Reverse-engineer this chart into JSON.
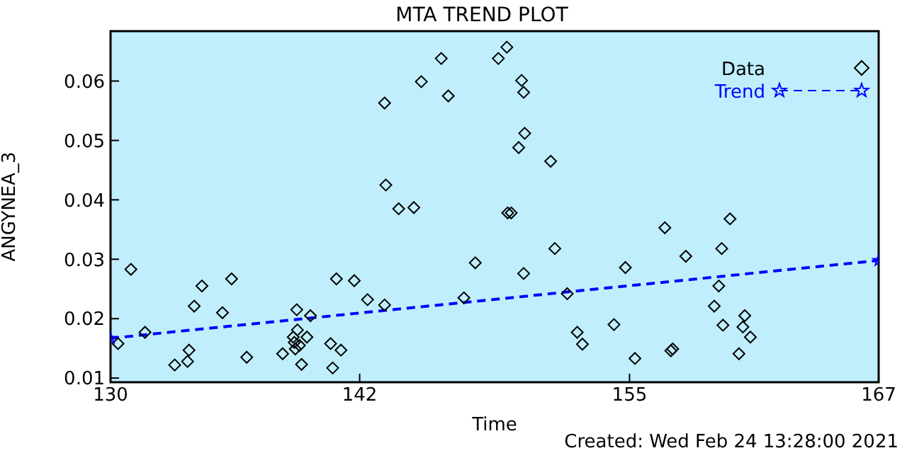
{
  "chart_data": {
    "type": "scatter",
    "title": "MTA TREND PLOT",
    "xlabel": "Time",
    "ylabel": "ANGYNEA_3",
    "annotations": [
      "Created: Wed Feb 24 13:28:00 2021"
    ],
    "xlim": [
      130,
      167
    ],
    "xticks": [
      130,
      142,
      155,
      167
    ],
    "ylim": [
      0.0093,
      0.0684
    ],
    "yticks": [
      0.01,
      0.02,
      0.03,
      0.04,
      0.05,
      0.06
    ],
    "legend": "top right",
    "series": [
      {
        "name": "Data",
        "color": "#000000",
        "marker": "diamond",
        "x": [
          130.36,
          130.98,
          131.66,
          133.09,
          133.71,
          133.78,
          134.03,
          134.4,
          135.39,
          135.83,
          136.56,
          138.29,
          138.8,
          138.9,
          138.97,
          139.0,
          139.1,
          139.2,
          138.85,
          139.46,
          139.63,
          140.6,
          140.7,
          140.88,
          141.1,
          141.74,
          142.38,
          143.2,
          143.2,
          143.26,
          143.88,
          144.61,
          144.97,
          145.93,
          146.27,
          147.02,
          147.57,
          148.68,
          149.09,
          149.13,
          149.3,
          149.66,
          149.8,
          149.9,
          149.9,
          149.95,
          151.2,
          151.4,
          152.0,
          152.48,
          152.73,
          154.25,
          154.8,
          155.26,
          156.7,
          156.99,
          157.08,
          157.71,
          159.08,
          159.3,
          159.44,
          159.5,
          159.84,
          160.27,
          160.46,
          160.55,
          160.82
        ],
        "values": [
          0.0158,
          0.0283,
          0.0177,
          0.0122,
          0.0128,
          0.0147,
          0.0221,
          0.0255,
          0.021,
          0.0267,
          0.0135,
          0.0141,
          0.0169,
          0.0149,
          0.0215,
          0.0181,
          0.0155,
          0.0123,
          0.016,
          0.0169,
          0.0205,
          0.0158,
          0.0117,
          0.0267,
          0.0147,
          0.0264,
          0.0232,
          0.0223,
          0.0563,
          0.0425,
          0.0385,
          0.0387,
          0.0599,
          0.0638,
          0.0575,
          0.0235,
          0.0294,
          0.0638,
          0.0657,
          0.0378,
          0.0378,
          0.0488,
          0.0601,
          0.0581,
          0.0276,
          0.0512,
          0.0465,
          0.0318,
          0.0242,
          0.0177,
          0.0157,
          0.019,
          0.0286,
          0.0133,
          0.0353,
          0.0146,
          0.0149,
          0.0305,
          0.0221,
          0.0255,
          0.0318,
          0.0189,
          0.0368,
          0.0141,
          0.0186,
          0.0205,
          0.0169
        ]
      },
      {
        "name": "Trend",
        "type": "line",
        "color": "#0000ff",
        "marker": "star",
        "line_style": "dashed",
        "x": [
          130,
          167
        ],
        "values": [
          0.0167,
          0.0298
        ]
      }
    ]
  }
}
